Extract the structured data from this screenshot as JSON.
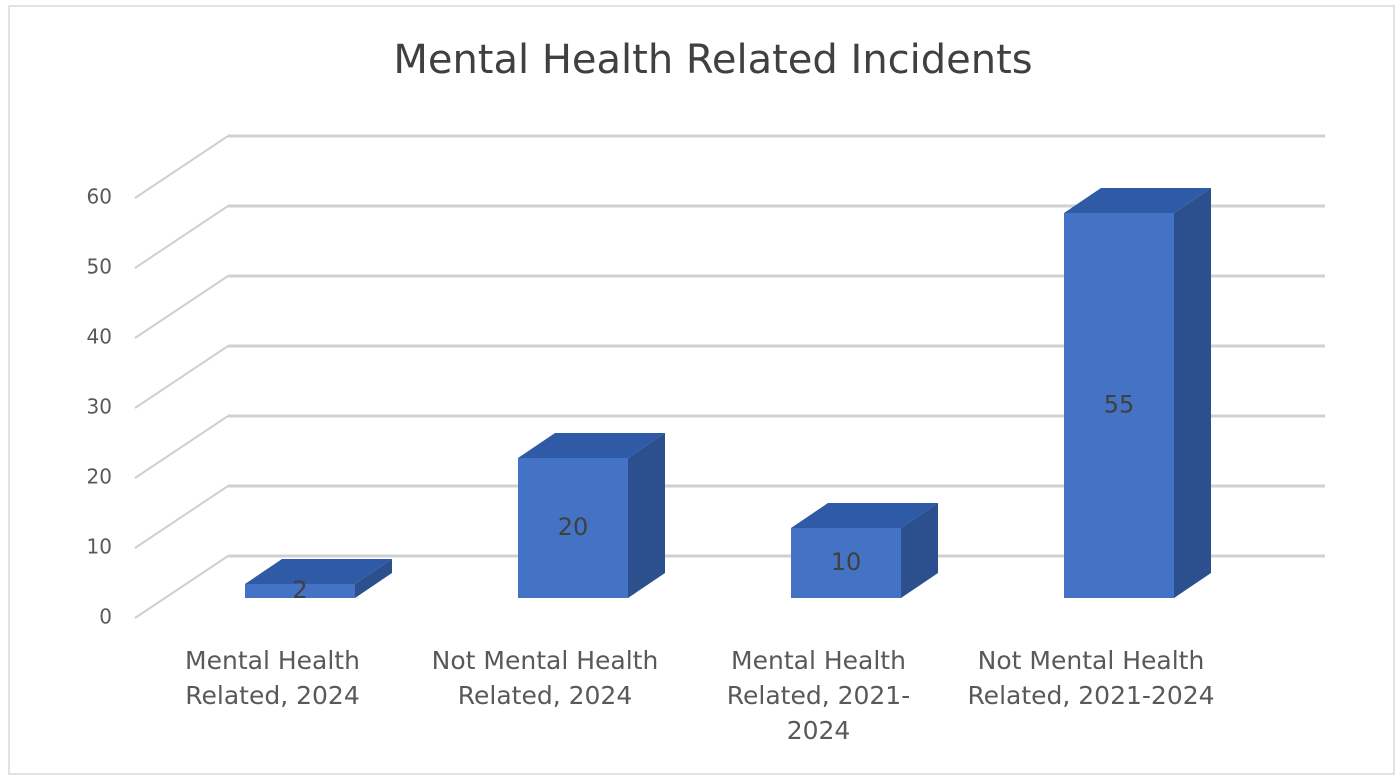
{
  "chart_data": {
    "type": "bar3d",
    "title": "Mental Health Related Incidents",
    "categories": [
      "Mental Health Related, 2024",
      "Not Mental Health Related, 2024",
      "Mental Health Related, 2021-2024",
      "Not Mental Health Related, 2021-2024"
    ],
    "values": [
      2,
      20,
      10,
      55
    ],
    "color": "#4472c4",
    "ylim": [
      0,
      60
    ],
    "yticks": [
      0,
      10,
      20,
      30,
      40,
      50,
      60
    ],
    "grid": true
  }
}
